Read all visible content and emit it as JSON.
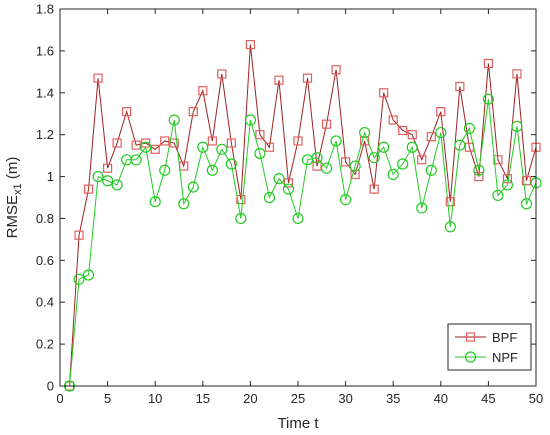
{
  "chart_data": {
    "type": "line",
    "title": "",
    "xlabel": "Time t",
    "ylabel_main": "RMSE",
    "ylabel_sub": "x1",
    "ylabel_unit": " (m)",
    "xlim": [
      0,
      50
    ],
    "ylim": [
      0,
      1.8
    ],
    "xticks": [
      0,
      5,
      10,
      15,
      20,
      25,
      30,
      35,
      40,
      45,
      50
    ],
    "yticks": [
      0,
      0.2,
      0.4,
      0.6,
      0.8,
      1,
      1.2,
      1.4,
      1.6,
      1.8
    ],
    "grid": false,
    "legend_position": "bottom-right",
    "x": [
      1,
      2,
      3,
      4,
      5,
      6,
      7,
      8,
      9,
      10,
      11,
      12,
      13,
      14,
      15,
      16,
      17,
      18,
      19,
      20,
      21,
      22,
      23,
      24,
      25,
      26,
      27,
      28,
      29,
      30,
      31,
      32,
      33,
      34,
      35,
      36,
      37,
      38,
      39,
      40,
      41,
      42,
      43,
      44,
      45,
      46,
      47,
      48,
      49,
      50
    ],
    "series": [
      {
        "name": "BPF",
        "color": "#a02020",
        "marker": "square",
        "marker_color": "#e06060",
        "values": [
          0,
          0.72,
          0.94,
          1.47,
          1.04,
          1.16,
          1.31,
          1.15,
          1.16,
          1.13,
          1.17,
          1.16,
          1.05,
          1.31,
          1.41,
          1.17,
          1.49,
          1.16,
          0.89,
          1.63,
          1.2,
          1.14,
          1.46,
          0.97,
          1.17,
          1.47,
          1.05,
          1.25,
          1.51,
          1.07,
          1.01,
          1.17,
          0.94,
          1.4,
          1.27,
          1.22,
          1.2,
          1.08,
          1.19,
          1.31,
          0.88,
          1.43,
          1.14,
          1.0,
          1.54,
          1.08,
          0.99,
          1.49,
          0.98,
          1.14
        ]
      },
      {
        "name": "NPF",
        "color": "#22cc22",
        "marker": "circle",
        "marker_color": "#22cc22",
        "values": [
          0,
          0.51,
          0.53,
          1.0,
          0.98,
          0.96,
          1.08,
          1.08,
          1.14,
          0.88,
          1.03,
          1.27,
          0.87,
          0.95,
          1.14,
          1.03,
          1.13,
          1.06,
          0.8,
          1.27,
          1.11,
          0.9,
          0.99,
          0.94,
          0.8,
          1.08,
          1.09,
          1.04,
          1.17,
          0.89,
          1.05,
          1.21,
          1.09,
          1.14,
          1.01,
          1.06,
          1.14,
          0.85,
          1.03,
          1.21,
          0.76,
          1.15,
          1.23,
          1.03,
          1.37,
          0.91,
          0.96,
          1.24,
          0.87,
          0.97
        ]
      }
    ]
  }
}
